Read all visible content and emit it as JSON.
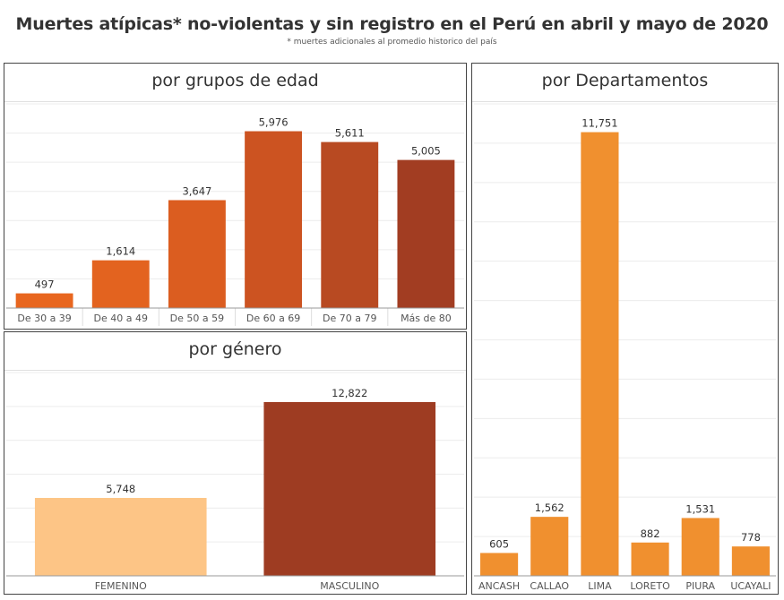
{
  "header": {
    "title": "Muertes atípicas* no-violentas y sin registro en el Perú en abril  y mayo de 2020",
    "subtitle": "* muertes adicionales al promedio historico del país"
  },
  "chart_data": [
    {
      "id": "edad",
      "type": "bar",
      "title": "por grupos de edad",
      "categories": [
        "De 30 a 39",
        "De 40 a 49",
        "De 50 a 59",
        "De 60 a 69",
        "De 70 a 79",
        "Más de 80"
      ],
      "values": [
        497,
        1614,
        3647,
        5976,
        5611,
        5005
      ],
      "value_labels": [
        "497",
        "1,614",
        "3,647",
        "5,976",
        "5,611",
        "5,005"
      ],
      "colors": [
        "#e8661f",
        "#e3631f",
        "#db5d20",
        "#cc5321",
        "#b84a22",
        "#a23d22"
      ],
      "ylim": [
        0,
        6900
      ],
      "xlabel": "",
      "ylabel": ""
    },
    {
      "id": "genero",
      "type": "bar",
      "title": "por género",
      "categories": [
        "FEMENINO",
        "MASCULINO"
      ],
      "values": [
        5748,
        12822
      ],
      "value_labels": [
        "5,748",
        "12,822"
      ],
      "colors": [
        "#fdc586",
        "#9e3c22"
      ],
      "ylim": [
        0,
        15000
      ],
      "xlabel": "",
      "ylabel": ""
    },
    {
      "id": "departamentos",
      "type": "bar",
      "title": "por Departamentos",
      "categories": [
        "ANCASH",
        "CALLAO",
        "LIMA",
        "LORETO",
        "PIURA",
        "UCAYALI"
      ],
      "values": [
        605,
        1562,
        11751,
        882,
        1531,
        778
      ],
      "value_labels": [
        "605",
        "1,562",
        "11,751",
        "882",
        "1,531",
        "778"
      ],
      "colors": [
        "#f0902f",
        "#f0902f",
        "#f0902f",
        "#f0902f",
        "#f0902f",
        "#f0902f"
      ],
      "ylim": [
        0,
        12500
      ],
      "xlabel": "",
      "ylabel": ""
    }
  ]
}
